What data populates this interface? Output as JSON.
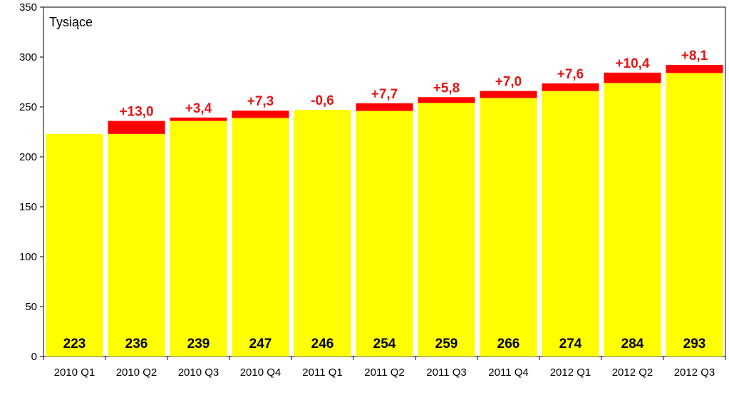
{
  "chart_data": {
    "type": "bar",
    "stacked": true,
    "unit_label": "Tysiące",
    "categories": [
      "2010 Q1",
      "2010 Q2",
      "2010 Q3",
      "2010 Q4",
      "2011 Q1",
      "2011 Q2",
      "2011 Q3",
      "2011 Q4",
      "2012 Q1",
      "2012 Q2",
      "2012 Q3"
    ],
    "totals": [
      223,
      236,
      239,
      247,
      246,
      254,
      259,
      266,
      274,
      284,
      293
    ],
    "series": [
      {
        "role": "base",
        "color": "#ffff00",
        "values": [
          223,
          223,
          236,
          239,
          247,
          246,
          254,
          259,
          266,
          274,
          284
        ]
      },
      {
        "role": "increase",
        "color": "#ff0000",
        "values": [
          0,
          13.0,
          3.4,
          7.3,
          0,
          7.7,
          5.8,
          7.0,
          7.6,
          10.4,
          8.1
        ]
      }
    ],
    "change_labels": [
      "",
      "+13,0",
      "+3,4",
      "+7,3",
      "-0,6",
      "+7,7",
      "+5,8",
      "+7,0",
      "+7,6",
      "+10,4",
      "+8,1"
    ],
    "ylim": [
      0,
      350
    ],
    "yticks": [
      0,
      50,
      100,
      150,
      200,
      250,
      300,
      350
    ],
    "grid": false,
    "colors": {
      "change_label": "#e31515",
      "value_label": "#000000",
      "axis": "#000000"
    }
  }
}
